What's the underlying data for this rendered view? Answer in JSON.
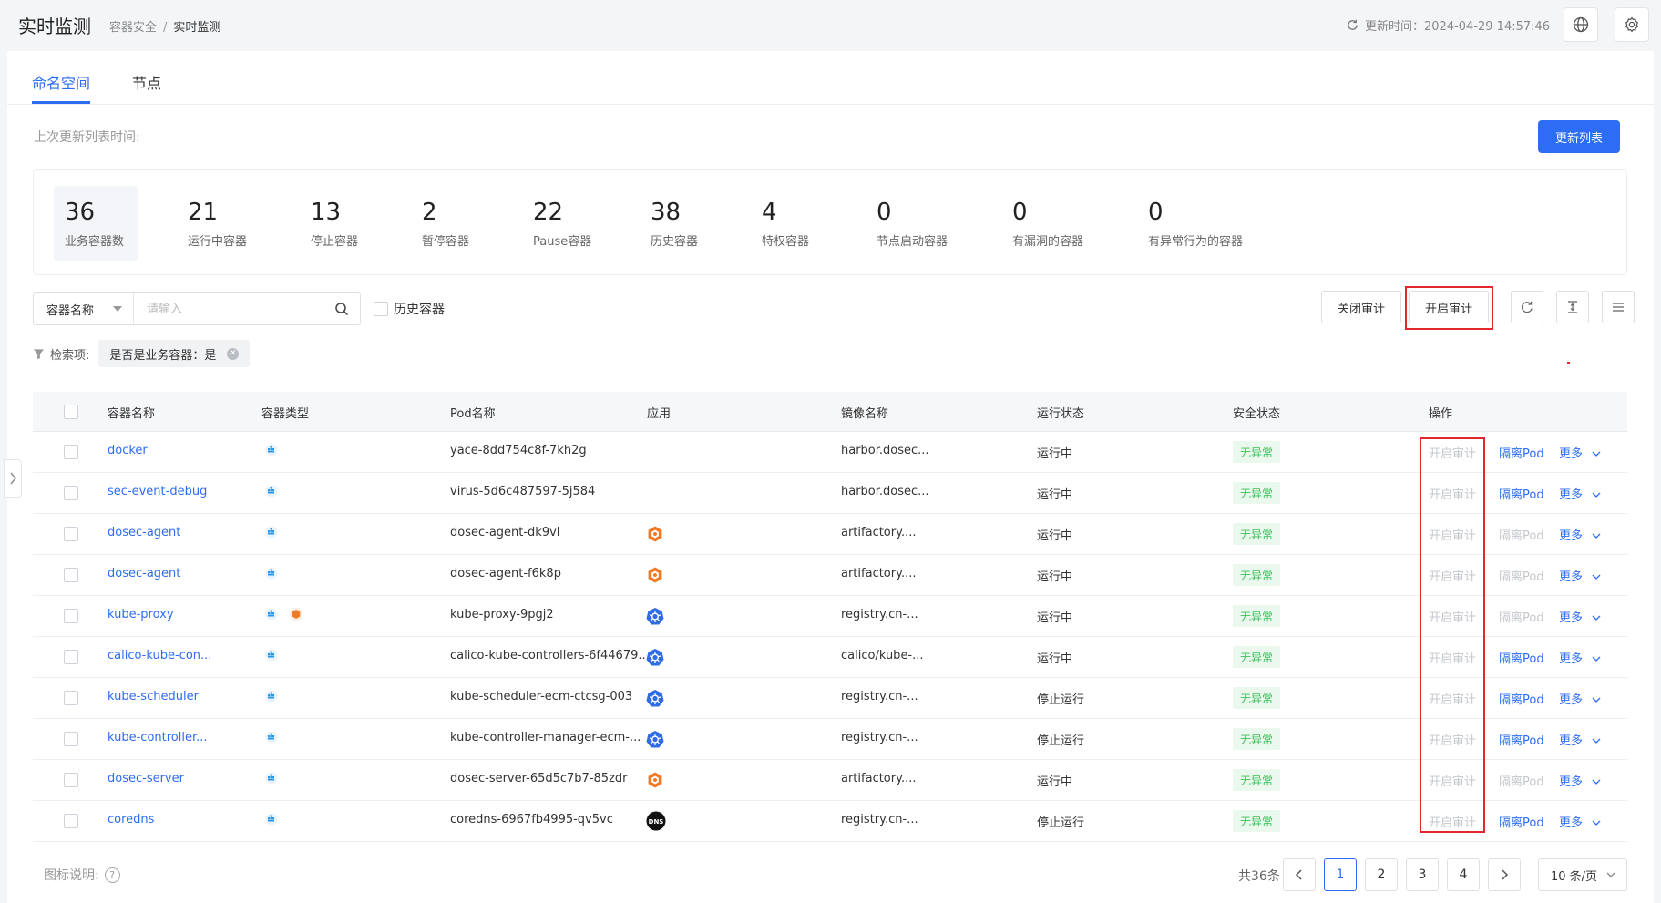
{
  "header": {
    "title": "实时监测",
    "breadcrumb": [
      "容器安全",
      "实时监测"
    ],
    "updated_label": "更新时间：2024-04-29 14:57:46"
  },
  "tabs": [
    {
      "label": "命名空间",
      "active": true
    },
    {
      "label": "节点",
      "active": false
    }
  ],
  "last_update_label": "上次更新列表时间:",
  "update_list_button": "更新列表",
  "stats": [
    {
      "value": "36",
      "label": "业务容器数"
    },
    {
      "value": "21",
      "label": "运行中容器"
    },
    {
      "value": "13",
      "label": "停止容器"
    },
    {
      "value": "2",
      "label": "暂停容器"
    },
    {
      "value": "22",
      "label": "Pause容器"
    },
    {
      "value": "38",
      "label": "历史容器"
    },
    {
      "value": "4",
      "label": "特权容器"
    },
    {
      "value": "0",
      "label": "节点启动容器"
    },
    {
      "value": "0",
      "label": "有漏洞的容器"
    },
    {
      "value": "0",
      "label": "有异常行为的容器"
    }
  ],
  "search": {
    "field": "容器名称",
    "placeholder": "请输入",
    "value": ""
  },
  "history_checkbox_label": "历史容器",
  "toolbar": {
    "close_audit": "关闭审计",
    "open_audit": "开启审计"
  },
  "filter": {
    "label": "检索项:",
    "tag": "是否是业务容器：是"
  },
  "columns": [
    "容器名称",
    "容器类型",
    "Pod名称",
    "应用",
    "镜像名称",
    "运行状态",
    "安全状态",
    "操作"
  ],
  "rows": [
    {
      "name": "docker",
      "types": [
        "docker"
      ],
      "pod": "yace-8dd754c8f-7kh2g",
      "app": "",
      "image": "harbor.dosec...",
      "status": "运行中",
      "security": "无异常",
      "op_audit": "开启审计",
      "op_isolate": "隔离Pod",
      "isolate_enabled": true,
      "op_more": "更多"
    },
    {
      "name": "sec-event-debug",
      "types": [
        "docker"
      ],
      "pod": "virus-5d6c487597-5j584",
      "app": "",
      "image": "harbor.dosec...",
      "status": "运行中",
      "security": "无异常",
      "op_audit": "开启审计",
      "op_isolate": "隔离Pod",
      "isolate_enabled": true,
      "op_more": "更多"
    },
    {
      "name": "dosec-agent",
      "types": [
        "docker"
      ],
      "pod": "dosec-agent-dk9vl",
      "app": "daemonset",
      "image": "artifactory....",
      "status": "运行中",
      "security": "无异常",
      "op_audit": "开启审计",
      "op_isolate": "隔离Pod",
      "isolate_enabled": false,
      "op_more": "更多"
    },
    {
      "name": "dosec-agent",
      "types": [
        "docker"
      ],
      "pod": "dosec-agent-f6k8p",
      "app": "daemonset",
      "image": "artifactory....",
      "status": "运行中",
      "security": "无异常",
      "op_audit": "开启审计",
      "op_isolate": "隔离Pod",
      "isolate_enabled": false,
      "op_more": "更多"
    },
    {
      "name": "kube-proxy",
      "types": [
        "docker",
        "privileged"
      ],
      "pod": "kube-proxy-9pgj2",
      "app": "kubernetes",
      "image": "registry.cn-...",
      "status": "运行中",
      "security": "无异常",
      "op_audit": "开启审计",
      "op_isolate": "隔离Pod",
      "isolate_enabled": false,
      "op_more": "更多"
    },
    {
      "name": "calico-kube-con...",
      "types": [
        "docker"
      ],
      "pod": "calico-kube-controllers-6f44679...",
      "app": "kubernetes",
      "image": "calico/kube-...",
      "status": "运行中",
      "security": "无异常",
      "op_audit": "开启审计",
      "op_isolate": "隔离Pod",
      "isolate_enabled": true,
      "op_more": "更多"
    },
    {
      "name": "kube-scheduler",
      "types": [
        "docker"
      ],
      "pod": "kube-scheduler-ecm-ctcsg-003",
      "app": "kubernetes",
      "image": "registry.cn-...",
      "status": "停止运行",
      "security": "无异常",
      "op_audit": "开启审计",
      "op_isolate": "隔离Pod",
      "isolate_enabled": true,
      "op_more": "更多"
    },
    {
      "name": "kube-controller...",
      "types": [
        "docker"
      ],
      "pod": "kube-controller-manager-ecm-...",
      "app": "kubernetes",
      "image": "registry.cn-...",
      "status": "停止运行",
      "security": "无异常",
      "op_audit": "开启审计",
      "op_isolate": "隔离Pod",
      "isolate_enabled": true,
      "op_more": "更多"
    },
    {
      "name": "dosec-server",
      "types": [
        "docker"
      ],
      "pod": "dosec-server-65d5c7b7-85zdr",
      "app": "daemonset",
      "image": "artifactory....",
      "status": "运行中",
      "security": "无异常",
      "op_audit": "开启审计",
      "op_isolate": "隔离Pod",
      "isolate_enabled": false,
      "op_more": "更多"
    },
    {
      "name": "coredns",
      "types": [
        "docker"
      ],
      "pod": "coredns-6967fb4995-qv5vc",
      "app": "dns",
      "image": "registry.cn-...",
      "status": "停止运行",
      "security": "无异常",
      "op_audit": "开启审计",
      "op_isolate": "隔离Pod",
      "isolate_enabled": true,
      "op_more": "更多"
    }
  ],
  "footer": {
    "legend_label": "图标说明:",
    "total": "共36条",
    "pages": [
      "1",
      "2",
      "3",
      "4"
    ],
    "current_page": "1",
    "page_size": "10 条/页"
  },
  "app_icon_text": {
    "dns": "DNS"
  },
  "colors": {
    "primary": "#2d6df6",
    "success_text": "#3cbf5a",
    "success_bg": "#eaf8ee",
    "highlight_border": "#e0282e",
    "daemonset_icon": "#f07a24",
    "kubernetes_icon": "#326ce5",
    "docker_icon": "#2496ed"
  }
}
